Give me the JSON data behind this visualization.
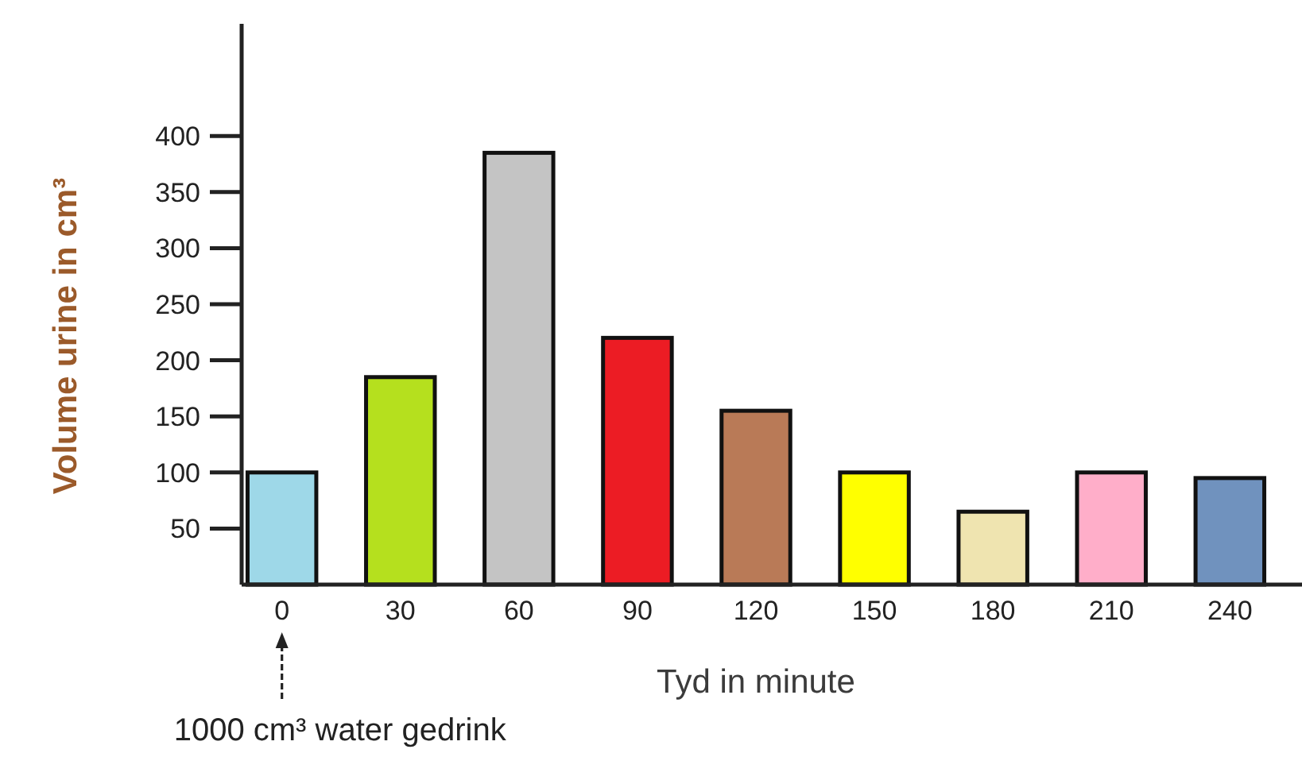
{
  "chart_data": {
    "type": "bar",
    "xlabel": "Tyd in minute",
    "ylabel": "Volume urine in cm³",
    "categories": [
      "0",
      "30",
      "60",
      "90",
      "120",
      "150",
      "180",
      "210",
      "240"
    ],
    "values": [
      100,
      185,
      385,
      220,
      155,
      100,
      65,
      100,
      95
    ],
    "colors": [
      "#9ed8e8",
      "#b5e01e",
      "#c4c4c4",
      "#ec1c24",
      "#b97a57",
      "#ffff00",
      "#efe4b0",
      "#ffaec9",
      "#7092be"
    ],
    "ylim": [
      0,
      500
    ],
    "yticks": [
      50,
      100,
      150,
      200,
      250,
      300,
      350,
      400
    ],
    "grid": false,
    "annotations": [
      "1000 cm³ water gedrink"
    ]
  }
}
